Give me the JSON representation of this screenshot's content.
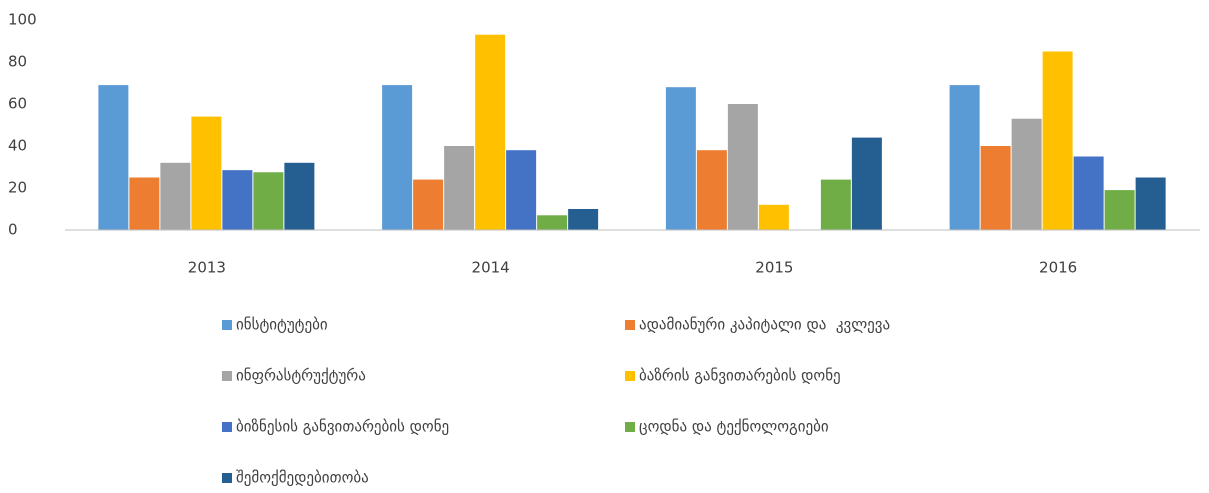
{
  "chart_data": {
    "type": "bar",
    "categories": [
      "2013",
      "2014",
      "2015",
      "2016"
    ],
    "ylim": [
      0,
      100
    ],
    "yticks": [
      0,
      20,
      40,
      60,
      80,
      100
    ],
    "grid": false,
    "legend": "bottom",
    "series": [
      {
        "name": "ინსტიტუტები",
        "color": "#5b9bd5",
        "values": [
          69,
          69,
          68,
          69
        ]
      },
      {
        "name": "ადამიანური კაპიტალი და  კვლევა",
        "color": "#ed7d31",
        "values": [
          25,
          24,
          38,
          40
        ]
      },
      {
        "name": "ინფრასტრუქტურა",
        "color": "#a5a5a5",
        "values": [
          32,
          40,
          60,
          53
        ]
      },
      {
        "name": "ბაზრის განვითარების დონე",
        "color": "#ffc000",
        "values": [
          54,
          93,
          12,
          85
        ]
      },
      {
        "name": "ბიზნესის განვითარების დონე",
        "color": "#4472c4",
        "values": [
          28.5,
          38,
          null,
          35
        ]
      },
      {
        "name": "ცოდნა და ტექნოლოგიები",
        "color": "#70ad47",
        "values": [
          27.5,
          7,
          24,
          19
        ]
      },
      {
        "name": "შემოქმედებითობა",
        "color": "#255e91",
        "values": [
          32,
          10,
          44,
          25
        ]
      }
    ]
  }
}
